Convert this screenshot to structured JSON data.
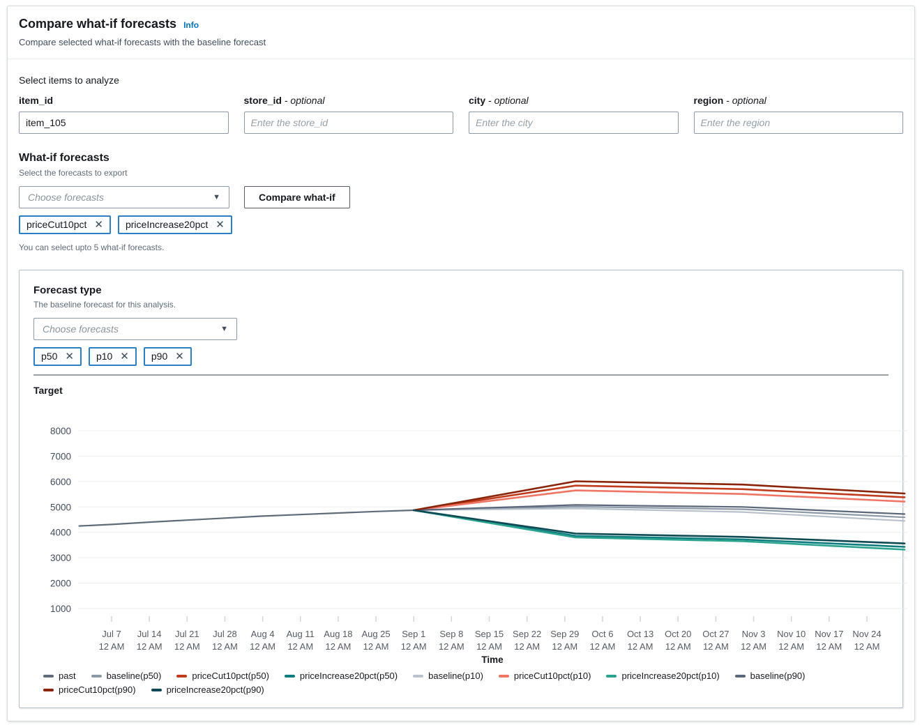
{
  "icons": {
    "dropdown_caret": "▼",
    "dismiss": "✕"
  },
  "header": {
    "title": "Compare what-if forecasts",
    "info_label": "Info",
    "subtitle": "Compare selected what-if forecasts with the baseline forecast"
  },
  "select_items": {
    "heading": "Select items to analyze",
    "optional_separator": " - ",
    "fields": [
      {
        "key": "item-id",
        "label": "item_id",
        "value": "item_105"
      },
      {
        "key": "store-id",
        "label": "store_id",
        "optional_label": "optional",
        "placeholder": "Enter the store_id"
      },
      {
        "key": "city",
        "label": "city",
        "optional_label": "optional",
        "placeholder": "Enter the city"
      },
      {
        "key": "region",
        "label": "region",
        "optional_label": "optional",
        "placeholder": "Enter the region"
      }
    ]
  },
  "whatif": {
    "heading": "What-if forecasts",
    "description": "Select the forecasts to export",
    "select_placeholder": "Choose forecasts",
    "button_label": "Compare what-if",
    "tags": [
      "priceCut10pct",
      "priceIncrease20pct"
    ],
    "helper": "You can select upto 5 what-if forecasts."
  },
  "forecast_type": {
    "heading": "Forecast type",
    "description": "The baseline forecast for this analysis.",
    "select_placeholder": "Choose forecasts",
    "tags": [
      "p50",
      "p10",
      "p90"
    ]
  },
  "chart_data": {
    "type": "line",
    "target_label": "Target",
    "xlabel": "Time",
    "grid": true,
    "legend_position": "bottom",
    "ylim": [
      1000,
      8000
    ],
    "yticks": [
      1000,
      2000,
      3000,
      4000,
      5000,
      6000,
      7000,
      8000
    ],
    "x_unit": "days offset from Jul 7 12 AM",
    "xticks": [
      {
        "label": "Jul 7",
        "sublabel": "12 AM",
        "day": 0
      },
      {
        "label": "Jul 14",
        "sublabel": "12 AM",
        "day": 7
      },
      {
        "label": "Jul 21",
        "sublabel": "12 AM",
        "day": 14
      },
      {
        "label": "Jul 28",
        "sublabel": "12 AM",
        "day": 21
      },
      {
        "label": "Aug 4",
        "sublabel": "12 AM",
        "day": 28
      },
      {
        "label": "Aug 11",
        "sublabel": "12 AM",
        "day": 35
      },
      {
        "label": "Aug 18",
        "sublabel": "12 AM",
        "day": 42
      },
      {
        "label": "Aug 25",
        "sublabel": "12 AM",
        "day": 49
      },
      {
        "label": "Sep 1",
        "sublabel": "12 AM",
        "day": 56
      },
      {
        "label": "Sep 8",
        "sublabel": "12 AM",
        "day": 63
      },
      {
        "label": "Sep 15",
        "sublabel": "12 AM",
        "day": 70
      },
      {
        "label": "Sep 22",
        "sublabel": "12 AM",
        "day": 77
      },
      {
        "label": "Sep 29",
        "sublabel": "12 AM",
        "day": 84
      },
      {
        "label": "Oct 6",
        "sublabel": "12 AM",
        "day": 91
      },
      {
        "label": "Oct 13",
        "sublabel": "12 AM",
        "day": 98
      },
      {
        "label": "Oct 20",
        "sublabel": "12 AM",
        "day": 105
      },
      {
        "label": "Oct 27",
        "sublabel": "12 AM",
        "day": 112
      },
      {
        "label": "Nov 3",
        "sublabel": "12 AM",
        "day": 119
      },
      {
        "label": "Nov 10",
        "sublabel": "12 AM",
        "day": 126
      },
      {
        "label": "Nov 17",
        "sublabel": "12 AM",
        "day": 133
      },
      {
        "label": "Nov 24",
        "sublabel": "12 AM",
        "day": 140
      }
    ],
    "series": [
      {
        "name": "past",
        "color": "#5f6b7a",
        "width": 2.2,
        "points": [
          [
            -6,
            4250
          ],
          [
            0,
            4310
          ],
          [
            7,
            4400
          ],
          [
            14,
            4480
          ],
          [
            21,
            4560
          ],
          [
            28,
            4640
          ],
          [
            35,
            4700
          ],
          [
            42,
            4760
          ],
          [
            49,
            4820
          ],
          [
            56,
            4870
          ]
        ]
      },
      {
        "name": "baseline(p50)",
        "color": "#8c99a8",
        "width": 2.2,
        "points": [
          [
            56,
            4870
          ],
          [
            86,
            5010
          ],
          [
            117,
            4910
          ],
          [
            147,
            4590
          ]
        ]
      },
      {
        "name": "priceCut10pct(p50)",
        "color": "#c03a1c",
        "width": 2.6,
        "points": [
          [
            56,
            4870
          ],
          [
            86,
            5840
          ],
          [
            117,
            5700
          ],
          [
            147,
            5380
          ]
        ]
      },
      {
        "name": "priceIncrease20pct(p50)",
        "color": "#0e7d80",
        "width": 2.6,
        "points": [
          [
            56,
            4870
          ],
          [
            86,
            3860
          ],
          [
            117,
            3720
          ],
          [
            147,
            3430
          ]
        ]
      },
      {
        "name": "baseline(p10)",
        "color": "#b8c1cc",
        "width": 2.2,
        "points": [
          [
            56,
            4870
          ],
          [
            86,
            4940
          ],
          [
            117,
            4800
          ],
          [
            147,
            4450
          ]
        ]
      },
      {
        "name": "priceCut10pct(p10)",
        "color": "#ef7565",
        "width": 2.6,
        "points": [
          [
            56,
            4870
          ],
          [
            86,
            5650
          ],
          [
            117,
            5510
          ],
          [
            147,
            5210
          ]
        ]
      },
      {
        "name": "priceIncrease20pct(p10)",
        "color": "#2aa48e",
        "width": 2.6,
        "points": [
          [
            56,
            4870
          ],
          [
            86,
            3800
          ],
          [
            117,
            3650
          ],
          [
            147,
            3320
          ]
        ]
      },
      {
        "name": "baseline(p90)",
        "color": "#5a6679",
        "width": 2.2,
        "points": [
          [
            56,
            4870
          ],
          [
            86,
            5080
          ],
          [
            117,
            5000
          ],
          [
            147,
            4720
          ]
        ]
      },
      {
        "name": "priceCut10pct(p90)",
        "color": "#8a2408",
        "width": 2.6,
        "points": [
          [
            56,
            4870
          ],
          [
            86,
            6010
          ],
          [
            117,
            5880
          ],
          [
            147,
            5530
          ]
        ]
      },
      {
        "name": "priceIncrease20pct(p90)",
        "color": "#0d4a54",
        "width": 2.6,
        "points": [
          [
            56,
            4870
          ],
          [
            86,
            3950
          ],
          [
            117,
            3820
          ],
          [
            147,
            3560
          ]
        ]
      }
    ]
  }
}
